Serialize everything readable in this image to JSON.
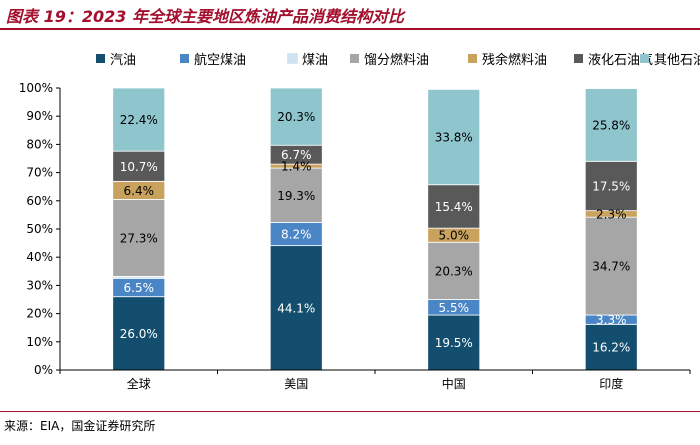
{
  "title": "图表 19：2023 年全球主要地区炼油产品消费结构对比",
  "source": "来源：EIA，国金证券研究所",
  "chart_data": {
    "type": "bar",
    "stacked": true,
    "normalized": true,
    "title": "",
    "xlabel": "",
    "ylabel": "",
    "ylim": [
      0,
      100
    ],
    "yticks": [
      "0%",
      "10%",
      "20%",
      "30%",
      "40%",
      "50%",
      "60%",
      "70%",
      "80%",
      "90%",
      "100%"
    ],
    "legend_position": "top",
    "categories": [
      "全球",
      "美国",
      "中国",
      "印度"
    ],
    "series": [
      {
        "name": "汽油",
        "color": "#134e6f",
        "values": [
          26.0,
          44.1,
          19.5,
          16.2
        ],
        "labels": [
          "26.0%",
          "44.1%",
          "19.5%",
          "16.2%"
        ]
      },
      {
        "name": "航空煤油",
        "color": "#4a86c5",
        "values": [
          6.5,
          8.2,
          5.5,
          3.3
        ],
        "labels": [
          "6.5%",
          "8.2%",
          "5.5%",
          "3.3%"
        ]
      },
      {
        "name": "煤油",
        "color": "#cfe3f1",
        "values": [
          0.7,
          0.0,
          0.0,
          0.0
        ],
        "labels": [
          "",
          "",
          "",
          ""
        ]
      },
      {
        "name": "馏分燃料油",
        "color": "#a6a6a6",
        "values": [
          27.3,
          19.3,
          20.3,
          34.7
        ],
        "labels": [
          "27.3%",
          "19.3%",
          "20.3%",
          "34.7%"
        ]
      },
      {
        "name": "残余燃料油",
        "color": "#c9a25e",
        "values": [
          6.4,
          1.4,
          5.0,
          2.3
        ],
        "labels": [
          "6.4%",
          "1.4%",
          "5.0%",
          "2.3%"
        ]
      },
      {
        "name": "液化石油气",
        "color": "#595959",
        "values": [
          10.7,
          6.7,
          15.4,
          17.5
        ],
        "labels": [
          "10.7%",
          "6.7%",
          "15.4%",
          "17.5%"
        ]
      },
      {
        "name": "其他石油产品",
        "color": "#8fc6ce",
        "values": [
          22.4,
          20.3,
          33.8,
          25.8
        ],
        "labels": [
          "22.4%",
          "20.3%",
          "33.8%",
          "25.8%"
        ]
      }
    ]
  }
}
